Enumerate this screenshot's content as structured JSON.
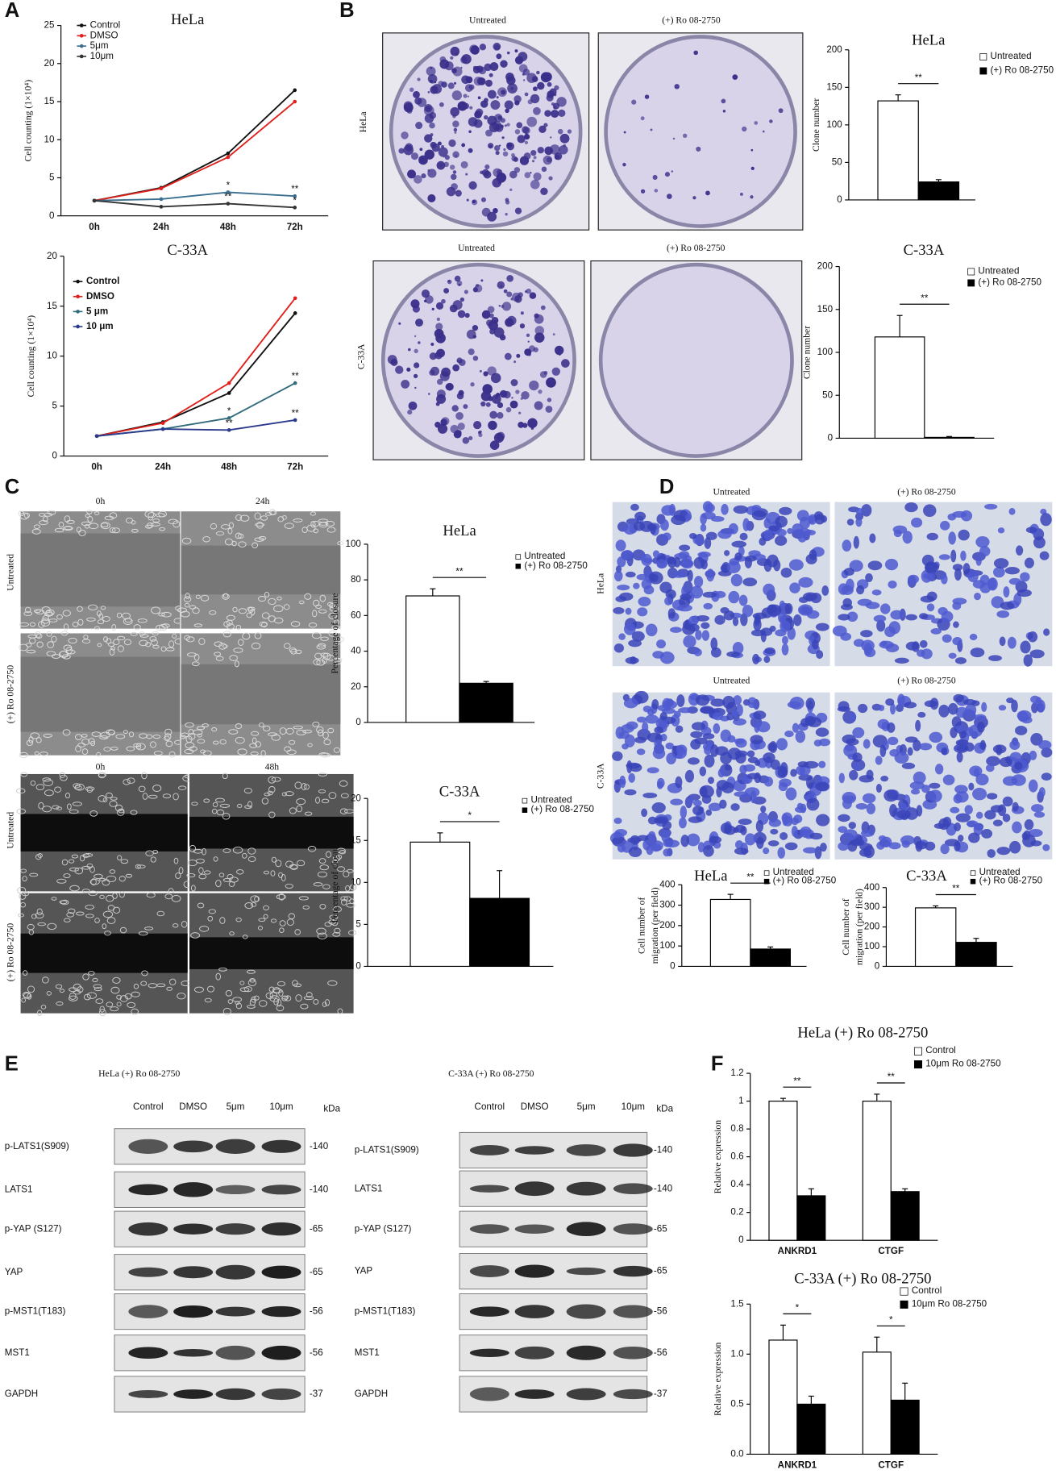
{
  "panels": [
    "A",
    "B",
    "C",
    "D",
    "E",
    "F"
  ],
  "colony": {
    "columns": [
      "Untreated",
      "(+) Ro 08-2750",
      "Untreated",
      "(+) Ro 08-2750"
    ],
    "rows": [
      "HeLa",
      "C-33A"
    ]
  },
  "wound": {
    "times": [
      "0h",
      "24h",
      "0h",
      "48h"
    ],
    "rows": [
      "Untreated",
      "(+) Ro 08-2750",
      "Untreated",
      "(+) Ro 08-2750"
    ]
  },
  "transwell": {
    "columns": [
      "Untreated",
      "(+) Ro 08-2750",
      "Untreated",
      "(+) Ro 08-2750"
    ],
    "rows": [
      "HeLa",
      "C-33A"
    ]
  },
  "western": [
    {
      "title": "HeLa (+) Ro 08-2750",
      "lanes": [
        "Control",
        "DMSO",
        "5μm",
        "10μm"
      ],
      "unit": "kDa",
      "proteins": [
        "p-LATS1(S909)",
        "LATS1",
        "p-YAP (S127)",
        "YAP",
        "p-MST1(T183)",
        "MST1",
        "GAPDH"
      ],
      "markers": [
        "-140",
        "-140",
        "-65",
        "-65",
        "-56",
        "-56",
        "-37"
      ]
    },
    {
      "title": "C-33A (+) Ro 08-2750",
      "lanes": [
        "Control",
        "DMSO",
        "5μm",
        "10μm"
      ],
      "unit": "kDa",
      "proteins": [
        "p-LATS1(S909)",
        "LATS1",
        "p-YAP (S127)",
        "YAP",
        "p-MST1(T183)",
        "MST1",
        "GAPDH"
      ],
      "markers": [
        "-140",
        "-140",
        "-65",
        "-65",
        "-56",
        "-56",
        "-37"
      ]
    }
  ],
  "chart_data": [
    {
      "type": "line",
      "title": "HeLa",
      "ylabel": [
        "Cell counting (1×10⁴)"
      ],
      "categories": [
        "0h",
        "24h",
        "48h",
        "72h"
      ],
      "ylim": [
        0,
        25
      ],
      "yticks": [
        0,
        5,
        10,
        15,
        20,
        25
      ],
      "series": [
        {
          "name": "Control",
          "color": "#111111",
          "values": [
            2,
            3.7,
            8.2,
            16.5
          ]
        },
        {
          "name": "DMSO",
          "color": "#e0201b",
          "values": [
            2,
            3.6,
            7.7,
            15
          ]
        },
        {
          "name": "5μm",
          "color": "#3a6f8f",
          "values": [
            2,
            2.2,
            3.1,
            2.6
          ]
        },
        {
          "name": "10μm",
          "color": "#333333",
          "values": [
            2,
            1.2,
            1.6,
            1.1
          ]
        }
      ],
      "annotations": [
        {
          "text": "*",
          "series": 2,
          "point": 2
        },
        {
          "text": "**",
          "series": 3,
          "point": 2
        },
        {
          "text": "**",
          "series": 2,
          "point": 3
        },
        {
          "text": "*",
          "series": 3,
          "point": 3
        }
      ]
    },
    {
      "type": "line",
      "title": "C-33A",
      "ylabel": [
        "Cell counting (1×10⁴)"
      ],
      "categories": [
        "0h",
        "24h",
        "48h",
        "72h"
      ],
      "ylim": [
        0,
        20
      ],
      "yticks": [
        0,
        5,
        10,
        15,
        20
      ],
      "series": [
        {
          "name": "Control",
          "color": "#111111",
          "values": [
            2,
            3.4,
            6.3,
            14.3
          ]
        },
        {
          "name": "DMSO",
          "color": "#e0201b",
          "values": [
            2,
            3.3,
            7.3,
            15.8
          ]
        },
        {
          "name": "5 μm",
          "color": "#2f6b7a",
          "values": [
            2,
            2.7,
            3.8,
            7.3
          ]
        },
        {
          "name": "10 μm",
          "color": "#2b3a8c",
          "values": [
            2,
            2.7,
            2.6,
            3.6
          ]
        }
      ],
      "annotations": [
        {
          "text": "*",
          "series": 2,
          "point": 2
        },
        {
          "text": "**",
          "series": 3,
          "point": 2
        },
        {
          "text": "**",
          "series": 2,
          "point": 3
        },
        {
          "text": "**",
          "series": 3,
          "point": 3
        }
      ]
    },
    {
      "type": "bar",
      "title": "HeLa",
      "ylabel": [
        "Clone number"
      ],
      "categories": [
        null
      ],
      "ylim": [
        0,
        200
      ],
      "yticks": [
        0,
        50,
        100,
        150,
        200
      ],
      "series": [
        {
          "name": "Untreated",
          "color": "#ffffff",
          "values": [
            132
          ],
          "errors": [
            8
          ]
        },
        {
          "name": "(+) Ro 08-2750",
          "color": "#000000",
          "values": [
            24
          ],
          "errors": [
            3
          ]
        }
      ],
      "significance": [
        "**"
      ]
    },
    {
      "type": "bar",
      "title": "C-33A",
      "ylabel": [
        "Clone number"
      ],
      "categories": [
        null
      ],
      "ylim": [
        0,
        200
      ],
      "yticks": [
        0,
        50,
        100,
        150,
        200
      ],
      "series": [
        {
          "name": "Untreated",
          "color": "#ffffff",
          "values": [
            118
          ],
          "errors": [
            25
          ]
        },
        {
          "name": "(+) Ro 08-2750",
          "color": "#000000",
          "values": [
            1
          ],
          "errors": [
            1
          ]
        }
      ],
      "significance": [
        "**"
      ]
    },
    {
      "type": "bar",
      "title": "HeLa",
      "ylabel": [
        "Percentage of closure"
      ],
      "categories": [
        null
      ],
      "ylim": [
        0,
        100
      ],
      "yticks": [
        0,
        20,
        40,
        60,
        80,
        100
      ],
      "series": [
        {
          "name": "Untreated",
          "color": "#ffffff",
          "values": [
            71
          ],
          "errors": [
            4
          ]
        },
        {
          "name": "(+) Ro 08-2750",
          "color": "#000000",
          "values": [
            22
          ],
          "errors": [
            1
          ]
        }
      ],
      "significance": [
        "**"
      ]
    },
    {
      "type": "bar",
      "title": "C-33A",
      "ylabel": [
        "Percentage of closure"
      ],
      "categories": [
        null
      ],
      "ylim": [
        0,
        20
      ],
      "yticks": [
        0,
        5,
        10,
        15,
        20
      ],
      "series": [
        {
          "name": "Untreated",
          "color": "#ffffff",
          "values": [
            14.8
          ],
          "errors": [
            1.1
          ]
        },
        {
          "name": "(+) Ro 08-2750",
          "color": "#000000",
          "values": [
            8.1
          ],
          "errors": [
            3.3
          ]
        }
      ],
      "significance": [
        "*"
      ]
    },
    {
      "type": "bar",
      "title": "HeLa",
      "ylabel": [
        "Cell number of",
        "migration (per field)"
      ],
      "categories": [
        null
      ],
      "ylim": [
        0,
        400
      ],
      "yticks": [
        0,
        100,
        200,
        300,
        400
      ],
      "series": [
        {
          "name": "Untreated",
          "color": "#ffffff",
          "values": [
            328
          ],
          "errors": [
            25
          ]
        },
        {
          "name": "(+) Ro 08-2750",
          "color": "#000000",
          "values": [
            85
          ],
          "errors": [
            10
          ]
        }
      ],
      "significance": [
        "**"
      ]
    },
    {
      "type": "bar",
      "title": "C-33A",
      "ylabel": [
        "Cell number of",
        "migration (per field)"
      ],
      "categories": [
        null
      ],
      "ylim": [
        0,
        400
      ],
      "yticks": [
        0,
        100,
        200,
        300,
        400
      ],
      "series": [
        {
          "name": "Untreated",
          "color": "#ffffff",
          "values": [
            297
          ],
          "errors": [
            10
          ]
        },
        {
          "name": "(+) Ro 08-2750",
          "color": "#000000",
          "values": [
            122
          ],
          "errors": [
            20
          ]
        }
      ],
      "significance": [
        "**"
      ]
    },
    {
      "type": "bar",
      "title": "HeLa (+) Ro 08-2750",
      "ylabel": [
        "Relative expression"
      ],
      "categories": [
        "ANKRD1",
        "CTGF"
      ],
      "ylim": [
        0,
        1.2
      ],
      "yticks": [
        0,
        0.2,
        0.4,
        0.6,
        0.8,
        1,
        1.2
      ],
      "series": [
        {
          "name": "Control",
          "color": "#ffffff",
          "values": [
            1,
            1
          ],
          "errors": [
            0.02,
            0.05
          ]
        },
        {
          "name": "10μm Ro 08-2750",
          "color": "#000000",
          "values": [
            0.32,
            0.35
          ],
          "errors": [
            0.05,
            0.02
          ]
        }
      ],
      "significance": [
        "**",
        "**"
      ]
    },
    {
      "type": "bar",
      "title": "C-33A (+) Ro 08-2750",
      "ylabel": [
        "Relative expression"
      ],
      "categories": [
        "ANKRD1",
        "CTGF"
      ],
      "ylim": [
        0,
        1.5
      ],
      "yticks": [
        {
          "value": 0,
          "label": "0.0"
        },
        {
          "value": 0.5,
          "label": "0.5"
        },
        {
          "value": 1,
          "label": "1.0"
        },
        {
          "value": 1.5,
          "label": "1.5"
        }
      ],
      "series": [
        {
          "name": "Control",
          "color": "#ffffff",
          "values": [
            1.14,
            1.02
          ],
          "errors": [
            0.15,
            0.15
          ]
        },
        {
          "name": "10μm Ro 08-2750",
          "color": "#000000",
          "values": [
            0.5,
            0.54
          ],
          "errors": [
            0.08,
            0.17
          ]
        }
      ],
      "significance": [
        "*",
        "*"
      ]
    }
  ]
}
